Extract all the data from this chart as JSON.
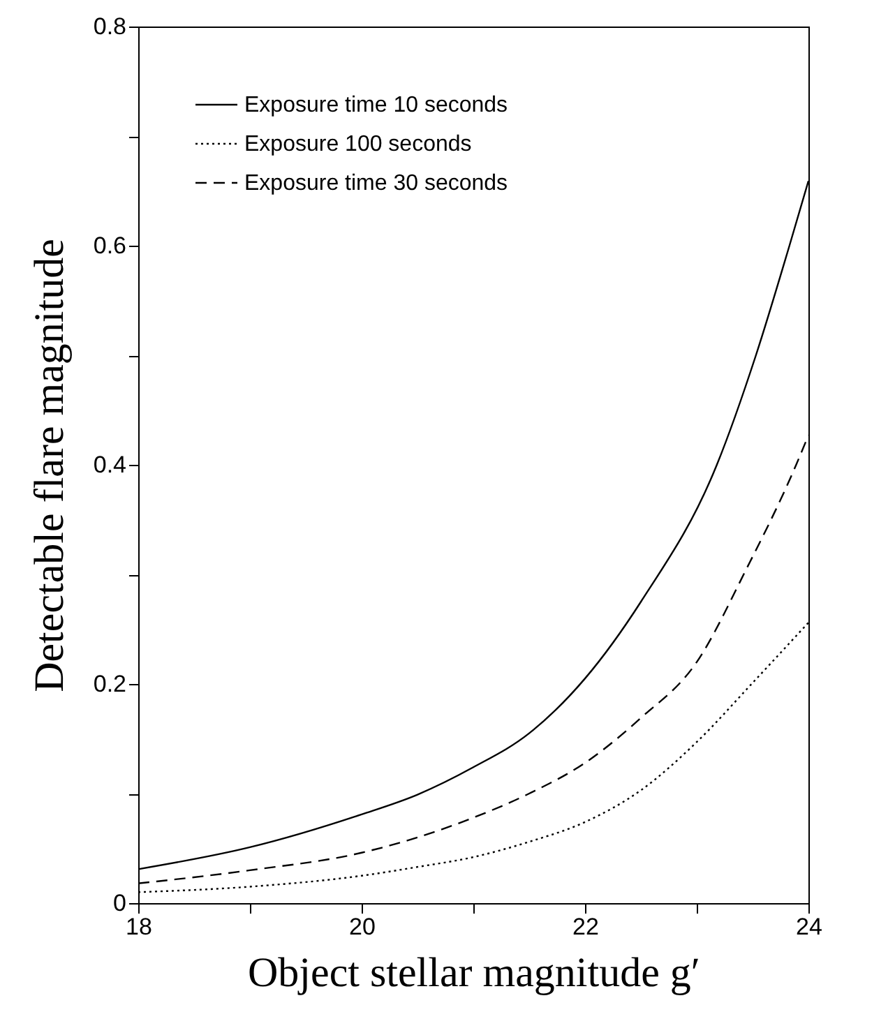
{
  "chart_data": {
    "type": "line",
    "xlabel": "Object stellar magnitude g′",
    "ylabel": "Detectable flare magnitude",
    "x": [
      18,
      19,
      20,
      20.5,
      21,
      21.5,
      22,
      22.5,
      23,
      23.5,
      24
    ],
    "series": [
      {
        "name": "Exposure time 10 seconds",
        "color": "#000000",
        "line_style": "solid",
        "x": [
          18,
          19,
          20,
          20.5,
          21,
          21.5,
          22,
          22.5,
          23.18,
          23.53,
          23.83,
          24
        ],
        "values": [
          0.031,
          0.051,
          0.081,
          0.099,
          0.124,
          0.155,
          0.205,
          0.275,
          0.4,
          0.5,
          0.6,
          0.659
        ]
      },
      {
        "name": "Exposure 100 seconds",
        "color": "#000000",
        "line_style": "dotted",
        "values": [
          0.01,
          0.015,
          0.025,
          0.033,
          0.042,
          0.056,
          0.074,
          0.103,
          0.147,
          0.201,
          0.256
        ]
      },
      {
        "name": "Exposure time 30 seconds",
        "color": "#000000",
        "line_style": "dashed",
        "x": [
          18,
          19,
          20,
          21,
          21.5,
          22,
          22.5,
          23,
          23.44,
          23.89,
          24
        ],
        "values": [
          0.018,
          0.03,
          0.046,
          0.078,
          0.1,
          0.128,
          0.169,
          0.22,
          0.304,
          0.4,
          0.427
        ]
      }
    ],
    "xlim": [
      18,
      24
    ],
    "ylim": [
      0,
      0.8
    ],
    "xticks": [
      18,
      {
        "value": 19,
        "label": null
      },
      20,
      {
        "value": 21,
        "label": null
      },
      22,
      {
        "value": 23,
        "label": null
      },
      24
    ],
    "yticks": [
      0,
      {
        "value": 0.1,
        "label": null
      },
      0.2,
      {
        "value": 0.3,
        "label": null
      },
      0.4,
      {
        "value": 0.5,
        "label": null
      },
      0.6,
      {
        "value": 0.7,
        "label": null
      },
      0.8
    ],
    "grid": false,
    "legend": "top left",
    "marker": "none"
  }
}
